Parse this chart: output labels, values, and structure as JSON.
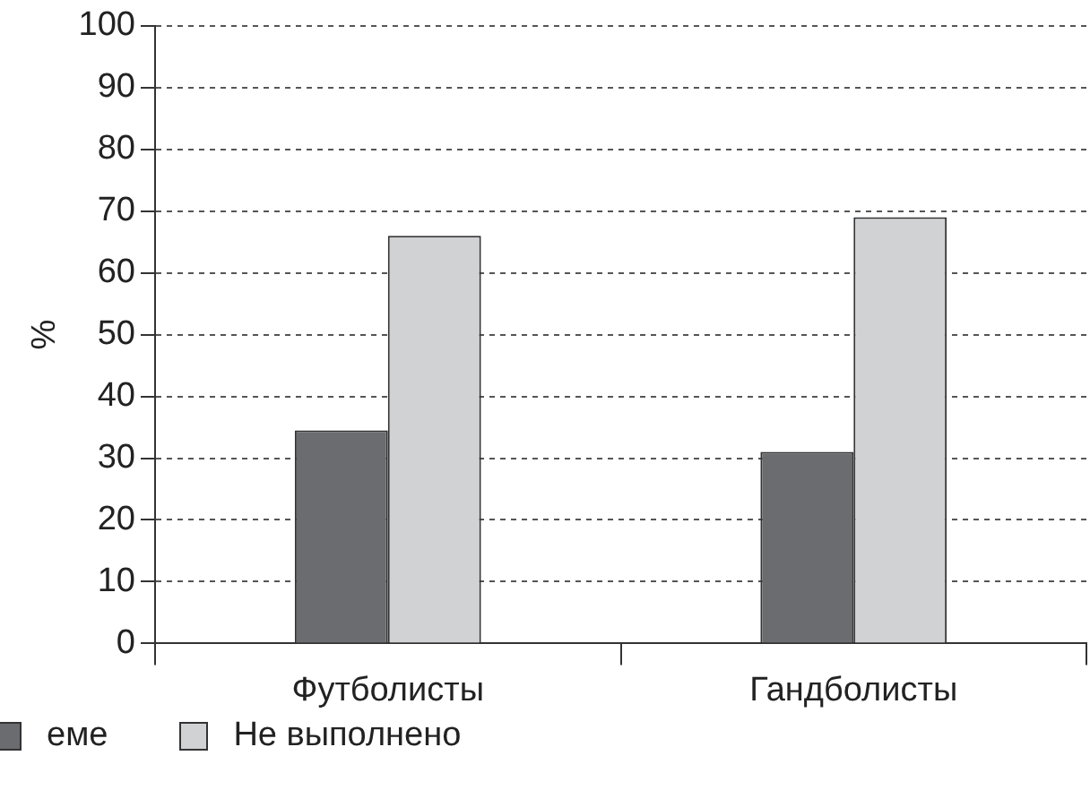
{
  "chart_data": {
    "type": "bar",
    "categories": [
      "Футболисты",
      "Гандболисты"
    ],
    "series": [
      {
        "name": "еме",
        "color": "#6b6c70",
        "values": [
          34.5,
          31
        ]
      },
      {
        "name": "Не выполнено",
        "color": "#d1d2d4",
        "values": [
          66,
          69
        ]
      }
    ],
    "ylabel": "%",
    "ylim": [
      0,
      100
    ],
    "yticks": [
      0,
      10,
      20,
      30,
      40,
      50,
      60,
      70,
      80,
      90,
      100
    ],
    "grid": "y",
    "legend": "bottom"
  }
}
